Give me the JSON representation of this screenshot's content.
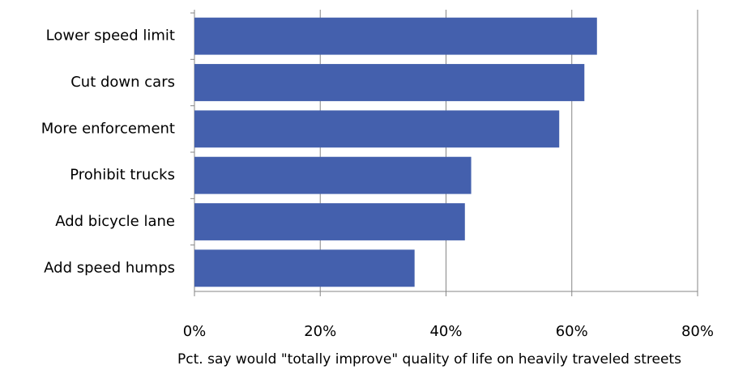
{
  "chart_data": {
    "type": "bar",
    "orientation": "horizontal",
    "xlabel": "Pct. say would \"totally improve\" quality of life on heavily traveled streets",
    "categories": [
      "Lower speed limit",
      "Cut down cars",
      "More enforcement",
      "Prohibit trucks",
      "Add bicycle lane",
      "Add speed humps"
    ],
    "values": [
      64,
      62,
      58,
      44,
      43,
      35
    ],
    "color": "#4460ad",
    "xlim": [
      0,
      80
    ],
    "xticks": [
      {
        "value": 0,
        "label": "0%"
      },
      {
        "value": 20,
        "label": "20%"
      },
      {
        "value": 40,
        "label": "40%"
      },
      {
        "value": 60,
        "label": "60%"
      },
      {
        "value": 80,
        "label": "80%"
      }
    ],
    "grid": true
  }
}
